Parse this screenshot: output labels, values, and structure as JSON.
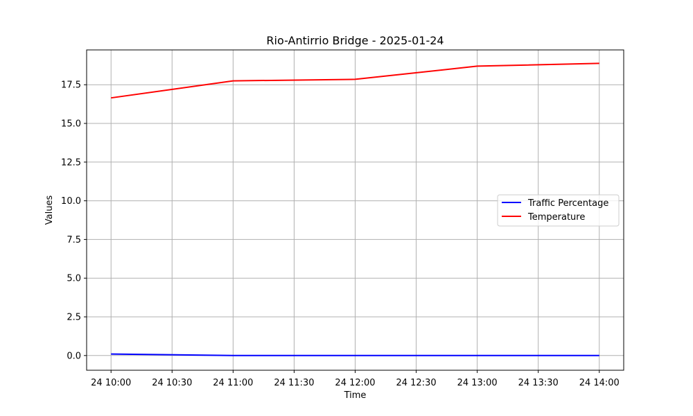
{
  "chart_data": {
    "type": "line",
    "title": "Rio-Antirrio Bridge - 2025-01-24",
    "xlabel": "Time",
    "ylabel": "Values",
    "x": [
      "2025-01-24 10:00",
      "2025-01-24 11:00",
      "2025-01-24 12:00",
      "2025-01-24 13:00",
      "2025-01-24 14:00"
    ],
    "x_tick_labels": [
      "24 10:00",
      "24 10:30",
      "24 11:00",
      "24 11:30",
      "24 12:00",
      "24 12:30",
      "24 13:00",
      "24 13:30",
      "24 14:00"
    ],
    "y_ticks": [
      0.0,
      2.5,
      5.0,
      7.5,
      10.0,
      12.5,
      15.0,
      17.5
    ],
    "y_tick_labels": [
      "0.0",
      "2.5",
      "5.0",
      "7.5",
      "10.0",
      "12.5",
      "15.0",
      "17.5"
    ],
    "ylim": [
      -0.95,
      19.75
    ],
    "grid": true,
    "legend_position": "center-right",
    "series": [
      {
        "name": "Traffic Percentage",
        "color": "#0000ff",
        "values": [
          0.1,
          0.0,
          0.0,
          0.0,
          0.0
        ]
      },
      {
        "name": "Temperature",
        "color": "#ff0000",
        "values": [
          16.65,
          17.75,
          17.85,
          18.7,
          18.88
        ]
      }
    ]
  }
}
